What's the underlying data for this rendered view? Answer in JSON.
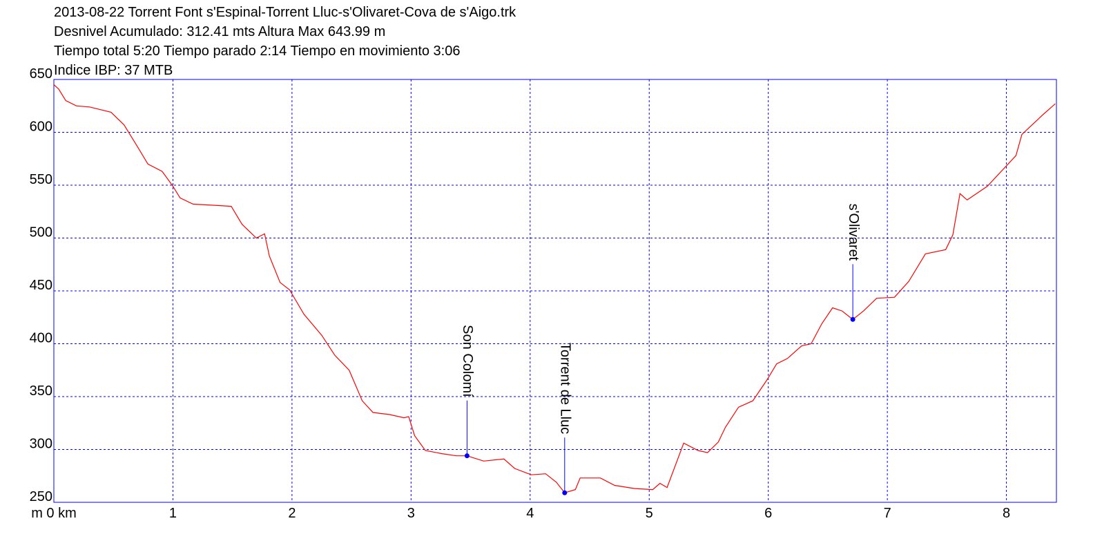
{
  "chart_data": {
    "type": "line",
    "title_lines": [
      "2013-08-22 Torrent Font s'Espinal-Torrent Lluc-s'Olivaret-Cova de s'Aigo.trk",
      "Desnivel Acumulado: 312.41 mts  Altura Max 643.99 m",
      "Tiempo total 5:20 Tiempo parado 2:14 Tiempo en movimiento 3:06",
      "Indice IBP: 37 MTB"
    ],
    "xlim": [
      0,
      8.42
    ],
    "ylim": [
      250,
      650
    ],
    "xticks": [
      {
        "value": 0,
        "label": "m 0 km"
      },
      1,
      2,
      3,
      4,
      5,
      6,
      7,
      8
    ],
    "yticks": [
      250,
      300,
      350,
      400,
      450,
      500,
      550,
      600,
      650
    ],
    "grid": true,
    "grid_color": "#0000ff",
    "frame_color": "#0000ff",
    "series": [
      {
        "color": "#ff0000",
        "x": [
          0,
          0.04,
          0.1,
          0.19,
          0.3,
          0.48,
          0.59,
          0.71,
          0.79,
          0.91,
          1.0,
          1.06,
          1.17,
          1.35,
          1.49,
          1.58,
          1.7,
          1.77,
          1.81,
          1.9,
          1.98,
          2.1,
          2.25,
          2.36,
          2.48,
          2.59,
          2.68,
          2.82,
          2.94,
          2.98,
          3.03,
          3.12,
          3.26,
          3.38,
          3.47,
          3.61,
          3.78,
          3.87,
          4.01,
          4.13,
          4.22,
          4.29,
          4.38,
          4.42,
          4.59,
          4.71,
          4.88,
          5.03,
          5.09,
          5.15,
          5.29,
          5.41,
          5.49,
          5.58,
          5.64,
          5.75,
          5.87,
          5.99,
          6.07,
          6.16,
          6.28,
          6.36,
          6.45,
          6.54,
          6.62,
          6.71,
          6.8,
          6.91,
          7.06,
          7.18,
          7.32,
          7.49,
          7.55,
          7.61,
          7.67,
          7.84,
          8.08,
          8.13,
          8.31,
          8.41
        ],
        "values": [
          645,
          641,
          630,
          625,
          624,
          619,
          607,
          585,
          570,
          563,
          549,
          538,
          532,
          531,
          530,
          513,
          500,
          504,
          483,
          458,
          451,
          428,
          408,
          389,
          375,
          346,
          335,
          333,
          330,
          331,
          313,
          299,
          296,
          294,
          294,
          289,
          291,
          282,
          276,
          277,
          269,
          259,
          262,
          273,
          273,
          266,
          263,
          262,
          268,
          264,
          306,
          299,
          297,
          307,
          321,
          340,
          346,
          366,
          381,
          386,
          398,
          400,
          419,
          434,
          431,
          423,
          431,
          443,
          444,
          459,
          485,
          489,
          503,
          542,
          536,
          549,
          578,
          598,
          617,
          627
        ]
      }
    ],
    "annotations": [
      {
        "label": "Son Colomí",
        "x": 3.47,
        "y": 294,
        "color": "#0000ff"
      },
      {
        "label": "Torrent de Lluc",
        "x": 4.29,
        "y": 259,
        "color": "#0000ff"
      },
      {
        "label": "s'Olivaret",
        "x": 6.71,
        "y": 423,
        "color": "#0000ff"
      }
    ]
  }
}
